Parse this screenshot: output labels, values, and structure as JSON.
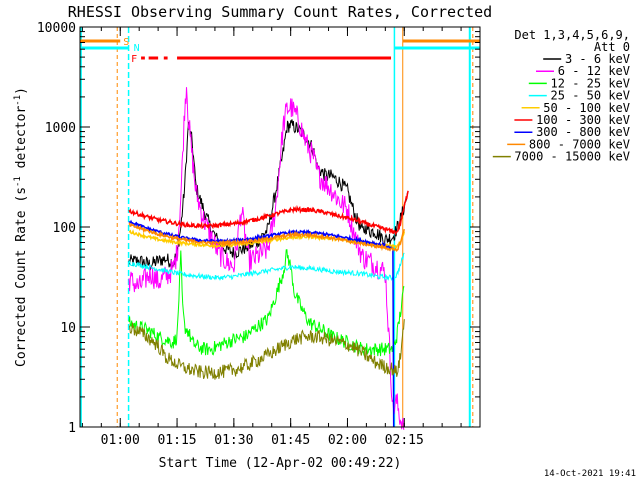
{
  "chart_data": {
    "type": "line",
    "title": "RHESSI Observing Summary Count Rates, Corrected",
    "xlabel": "Start Time (12-Apr-02 00:49:22)",
    "ylabel": "Corrected Count Rate (s⁻¹ detector⁻¹)",
    "ylabel_prefix": "Corrected Count Rate (s",
    "ylabel_mid": " detector",
    "ylabel_suffix": ")",
    "ylabel_sup": "-1",
    "y_scale": "log",
    "ylim": [
      1,
      10000
    ],
    "xlim_minutes": [
      49.37,
      155.0
    ],
    "x_ticks": [
      {
        "minute": 60,
        "label": "01:00"
      },
      {
        "minute": 75,
        "label": "01:15"
      },
      {
        "minute": 90,
        "label": "01:30"
      },
      {
        "minute": 105,
        "label": "01:45"
      },
      {
        "minute": 120,
        "label": "02:00"
      },
      {
        "minute": 135,
        "label": "02:15"
      }
    ],
    "y_ticks": [
      {
        "value": 1,
        "label": "1"
      },
      {
        "value": 10,
        "label": "10"
      },
      {
        "value": 100,
        "label": "100"
      },
      {
        "value": 1000,
        "label": "1000"
      },
      {
        "value": 10000,
        "label": "10000"
      }
    ],
    "legend": {
      "placement": "right",
      "header_line1": "Det 1,3,4,5,6,9,",
      "header_line2": "Att 0"
    },
    "flag_labels": {
      "saa": "S",
      "night": "N",
      "flare": "F"
    },
    "footer_date": "14-Oct-2021 19:41",
    "night_markers_minutes": [
      49.6,
      62.2,
      132.4,
      152.3
    ],
    "saa_markers_minutes": [
      59.2,
      134.6,
      153.1
    ],
    "flare_segments_minutes": [
      [
        65.5,
        66.5
      ],
      [
        67.5,
        70.0
      ],
      [
        71.5,
        72.5
      ],
      [
        75.0,
        131.5
      ]
    ],
    "series": [
      {
        "name": "3 - 6 keV",
        "color": "#000000",
        "x": [
          62.3,
          65,
          68,
          70,
          72,
          74,
          75,
          76,
          77,
          78,
          79,
          80,
          82,
          84,
          86,
          88,
          90,
          93,
          96,
          99,
          101,
          103,
          104,
          105,
          107,
          109,
          111,
          112,
          114,
          116,
          118,
          120,
          122,
          124,
          125,
          126,
          127,
          128,
          130,
          132,
          133,
          134,
          135,
          136
        ],
        "y": [
          45,
          46,
          42,
          46,
          48,
          44,
          55,
          100,
          250,
          1100,
          700,
          250,
          150,
          95,
          70,
          60,
          55,
          62,
          70,
          95,
          220,
          550,
          1000,
          1050,
          950,
          800,
          600,
          400,
          330,
          320,
          280,
          230,
          130,
          90,
          100,
          90,
          92,
          85,
          75,
          80,
          95,
          120,
          160,
          220
        ]
      },
      {
        "name": "6 - 12 keV",
        "color": "#ff00ff",
        "x": [
          62.3,
          65,
          68,
          70,
          72,
          74,
          75,
          76,
          77,
          77.5,
          78,
          79,
          80,
          82,
          84,
          86,
          88,
          90,
          92,
          94,
          96,
          99,
          101,
          103,
          104,
          105,
          107,
          109,
          111,
          112,
          114,
          116,
          118,
          120,
          122,
          124,
          126,
          128,
          130,
          132,
          133,
          134,
          135
        ],
        "y": [
          30,
          25,
          35,
          28,
          32,
          38,
          55,
          200,
          1500,
          2700,
          1200,
          500,
          220,
          120,
          80,
          55,
          45,
          40,
          150,
          45,
          50,
          60,
          150,
          1000,
          1500,
          1600,
          1200,
          700,
          500,
          350,
          280,
          230,
          180,
          150,
          80,
          50,
          45,
          40,
          35,
          1.5,
          1.8,
          1.2,
          0.9
        ]
      },
      {
        "name": "12 - 25 keV",
        "color": "#00ff00",
        "x": [
          62.3,
          65,
          68,
          70,
          72,
          74,
          75,
          76,
          76.5,
          77,
          78,
          79,
          80,
          82,
          84,
          86,
          88,
          90,
          93,
          96,
          99,
          101,
          103,
          104,
          105,
          106,
          108,
          110,
          112,
          114,
          116,
          118,
          120,
          122,
          124,
          126,
          128,
          130,
          132,
          133,
          134,
          135
        ],
        "y": [
          11,
          10,
          9,
          8,
          7.5,
          7,
          8,
          50,
          15,
          10,
          9,
          7,
          6.5,
          6,
          6,
          6.5,
          7,
          7.5,
          8,
          10,
          12,
          20,
          35,
          55,
          40,
          22,
          15,
          11,
          10,
          9,
          8,
          7.5,
          7,
          6.5,
          6,
          6,
          6,
          6,
          6,
          8,
          14,
          25
        ]
      },
      {
        "name": "25 - 50 keV",
        "color": "#00ffff",
        "x": [
          62.3,
          66,
          70,
          74,
          78,
          82,
          86,
          90,
          94,
          98,
          102,
          105,
          108,
          112,
          116,
          120,
          124,
          128,
          132,
          133,
          134,
          135
        ],
        "y": [
          44,
          41,
          38,
          35,
          33,
          32,
          31,
          32,
          34,
          36,
          38,
          40,
          39,
          38,
          36,
          35,
          34,
          32,
          31,
          33,
          42,
          55
        ]
      },
      {
        "name": "50 - 100 keV",
        "color": "#ffcc00",
        "x": [
          62.3,
          66,
          70,
          74,
          78,
          82,
          86,
          90,
          94,
          98,
          102,
          106,
          110,
          114,
          118,
          122,
          126,
          130,
          133,
          134,
          135
        ],
        "y": [
          90,
          82,
          75,
          71,
          68,
          66,
          65,
          66,
          68,
          72,
          76,
          79,
          80,
          78,
          75,
          72,
          68,
          65,
          63,
          70,
          90
        ]
      },
      {
        "name": "100 - 300 keV",
        "color": "#ff0000",
        "x": [
          62.3,
          66,
          70,
          74,
          78,
          82,
          86,
          90,
          94,
          98,
          102,
          106,
          110,
          114,
          118,
          122,
          126,
          130,
          133,
          134,
          135,
          136
        ],
        "y": [
          145,
          130,
          118,
          110,
          104,
          102,
          104,
          108,
          115,
          125,
          138,
          150,
          148,
          140,
          128,
          118,
          105,
          95,
          88,
          110,
          160,
          230
        ]
      },
      {
        "name": "300 - 800 keV",
        "color": "#0000ff",
        "x": [
          62.3,
          66,
          70,
          74,
          78,
          82,
          86,
          90,
          94,
          98,
          102,
          106,
          110,
          114,
          118,
          122,
          126,
          130,
          132,
          132.2
        ],
        "y": [
          115,
          100,
          90,
          82,
          76,
          73,
          72,
          73,
          76,
          80,
          85,
          89,
          88,
          85,
          80,
          75,
          70,
          65,
          60,
          1
        ]
      },
      {
        "name": "800 - 7000 keV",
        "color": "#ff8800",
        "x": [
          62.3,
          66,
          70,
          74,
          78,
          82,
          86,
          90,
          94,
          98,
          102,
          106,
          110,
          114,
          118,
          122,
          126,
          130,
          133,
          134,
          135
        ],
        "y": [
          105,
          95,
          85,
          78,
          73,
          70,
          69,
          70,
          72,
          75,
          80,
          84,
          83,
          80,
          75,
          70,
          66,
          62,
          58,
          70,
          95
        ]
      },
      {
        "name": "7000 - 15000 keV",
        "color": "#808000",
        "x": [
          62.3,
          65,
          68,
          70,
          72,
          74,
          76,
          78,
          80,
          82,
          85,
          88,
          91,
          94,
          97,
          100,
          103,
          106,
          109,
          112,
          115,
          118,
          121,
          124,
          127,
          130,
          132,
          133,
          134,
          135
        ],
        "y": [
          10,
          9,
          7.5,
          6.5,
          5,
          4.5,
          4,
          3.8,
          3.6,
          3.5,
          3.5,
          3.6,
          3.8,
          4.2,
          4.8,
          5.5,
          6.5,
          7.5,
          8,
          8,
          7.5,
          7,
          6.5,
          5.5,
          4.5,
          4,
          3.8,
          3.5,
          5,
          12
        ]
      }
    ]
  }
}
